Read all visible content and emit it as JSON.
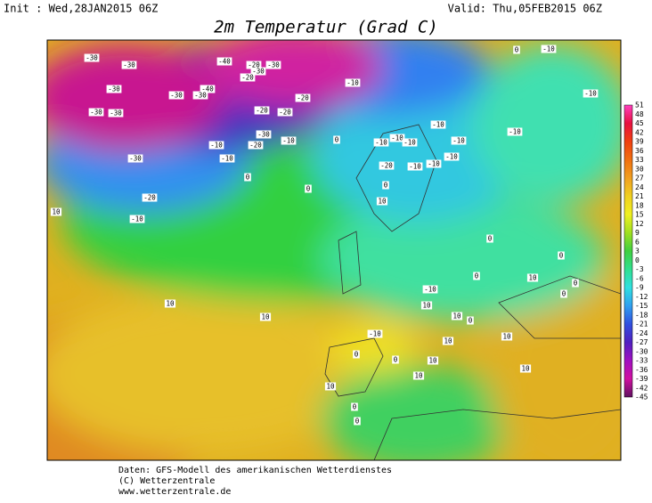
{
  "header": {
    "init": "Init : Wed,28JAN2015 06Z",
    "valid": "Valid: Thu,05FEB2015 06Z",
    "title": "2m Temperatur (Grad C)"
  },
  "colorbar": {
    "labels": [
      51,
      48,
      45,
      42,
      39,
      36,
      33,
      30,
      27,
      24,
      21,
      18,
      15,
      12,
      9,
      6,
      3,
      0,
      -3,
      -6,
      -9,
      -12,
      -15,
      -18,
      -21,
      -24,
      -27,
      -30,
      -33,
      -36,
      -39,
      -42,
      -45
    ],
    "colors": [
      "#ff40c0",
      "#e81040",
      "#f04010",
      "#f07010",
      "#f0a020",
      "#f0d020",
      "#f0f020",
      "#a0e020",
      "#40d040",
      "#30e090",
      "#30e0e0",
      "#30a0f0",
      "#3050e0",
      "#5020c0",
      "#a010c0",
      "#d010a0",
      "#601060"
    ]
  },
  "map_labels": [
    "-30",
    "-30",
    "-30",
    "-30",
    "-30",
    "-30",
    "-40",
    "-20",
    "-30",
    "-30",
    "-40",
    "-30",
    "-30",
    "-20",
    "-20",
    "-10",
    "-10",
    "-10",
    "-20",
    "-30",
    "-20",
    "-10",
    "-20",
    "0",
    "-10",
    "-10",
    "-10",
    "-10",
    "-10",
    "-20",
    "-10",
    "-10",
    "-10",
    "-10",
    "0",
    "-10",
    "-10",
    "0",
    "-20",
    "0",
    "10",
    "-10",
    "10",
    "10",
    "10",
    "0",
    "0",
    "0",
    "-10",
    "0",
    "10",
    "0",
    "0",
    "10",
    "10",
    "0",
    "10",
    "10",
    "0",
    "0",
    "0",
    "10",
    "10",
    "-10",
    "10",
    "0",
    "10"
  ],
  "footer": [
    "Daten: GFS-Modell des amerikanischen Wetterdienstes",
    "(C) Wetterzentrale",
    "www.wetterzentrale.de"
  ]
}
